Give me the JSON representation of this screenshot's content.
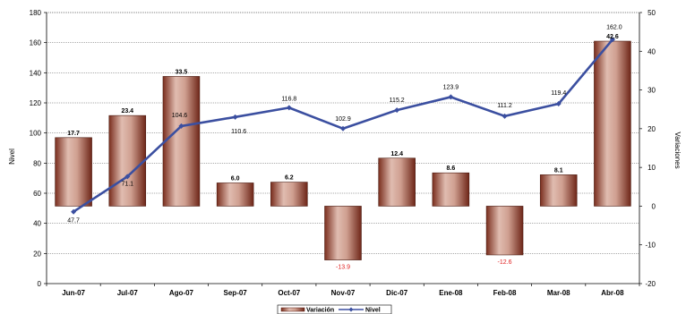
{
  "chart_data": {
    "type": "bar+line",
    "categories": [
      "Jun-07",
      "Jul-07",
      "Ago-07",
      "Sep-07",
      "Oct-07",
      "Nov-07",
      "Dic-07",
      "Ene-08",
      "Feb-08",
      "Mar-08",
      "Abr-08"
    ],
    "series": [
      {
        "name": "Variación",
        "type": "bar",
        "axis": "right",
        "values": [
          17.7,
          23.4,
          33.5,
          6.0,
          6.2,
          -13.9,
          12.4,
          8.6,
          -12.6,
          8.1,
          42.6
        ],
        "labels": [
          "17.7",
          "23.4",
          "33.5",
          "6.0",
          "6.2",
          "-13.9",
          "12.4",
          "8.6",
          "-12.6",
          "8.1",
          "42.6"
        ]
      },
      {
        "name": "Nivel",
        "type": "line",
        "axis": "left",
        "values": [
          47.7,
          71.1,
          104.6,
          110.6,
          116.8,
          102.9,
          115.2,
          123.9,
          111.2,
          119.4,
          162.0
        ],
        "labels": [
          "47.7",
          "71.1",
          "104.6",
          "110.6",
          "116.8",
          "102.9",
          "115.2",
          "123.9",
          "111.2",
          "119.4",
          "162.0"
        ]
      }
    ],
    "ylabel_left": "Nivel",
    "ylabel_right": "Variaciones",
    "ylim_left": [
      0,
      180
    ],
    "yticks_left": [
      0,
      20,
      40,
      60,
      80,
      100,
      120,
      140,
      160,
      180
    ],
    "ylim_right": [
      -20,
      50
    ],
    "yticks_right": [
      -20,
      -10,
      0,
      10,
      20,
      30,
      40,
      50
    ],
    "grid": true,
    "legend_position": "bottom-center",
    "colors": {
      "bar_fill_light": "#dbb2a5",
      "bar_fill_dark": "#7a2e1e",
      "line": "#3b4fa0",
      "negative_label": "#e02020"
    }
  }
}
